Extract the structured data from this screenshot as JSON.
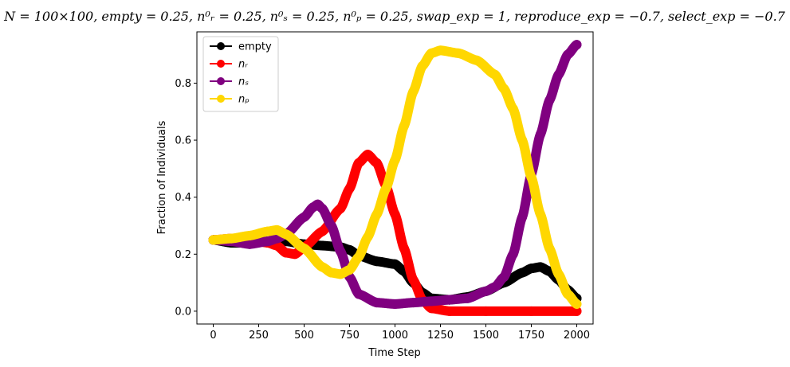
{
  "chart_data": {
    "type": "line",
    "title": "N = 100 × 100, empty = 0.25, n_r^0 = 0.25, n_s^0 = 0.25, n_p^0 = 0.25, swap_exp = 1, reproduce_exp = −0.7, select_exp = −0.7",
    "title_display": "N = 100×100, empty = 0.25, n⁰ᵣ = 0.25, n⁰ₛ = 0.25, n⁰ₚ = 0.25, swap_exp = 1, reproduce_exp = −0.7, select_exp = −0.7",
    "xlabel": "Time Step",
    "ylabel": "Fraction of Individuals",
    "xlim": [
      -90,
      2090
    ],
    "ylim": [
      -0.045,
      0.98
    ],
    "xticks": [
      0,
      250,
      500,
      750,
      1000,
      1250,
      1500,
      1750,
      2000
    ],
    "yticks": [
      0.0,
      0.2,
      0.4,
      0.6,
      0.8
    ],
    "xtick_labels": [
      "0",
      "250",
      "500",
      "750",
      "1000",
      "1250",
      "1500",
      "1750",
      "2000"
    ],
    "ytick_labels": [
      "0.0",
      "0.2",
      "0.4",
      "0.6",
      "0.8"
    ],
    "grid": false,
    "legend_position": "top-left",
    "series": [
      {
        "name": "empty",
        "color": "#000000",
        "points": [
          [
            0,
            0.25
          ],
          [
            100,
            0.24
          ],
          [
            200,
            0.24
          ],
          [
            300,
            0.245
          ],
          [
            400,
            0.245
          ],
          [
            500,
            0.235
          ],
          [
            600,
            0.23
          ],
          [
            700,
            0.225
          ],
          [
            750,
            0.215
          ],
          [
            800,
            0.195
          ],
          [
            900,
            0.175
          ],
          [
            1000,
            0.165
          ],
          [
            1050,
            0.14
          ],
          [
            1100,
            0.1
          ],
          [
            1150,
            0.065
          ],
          [
            1200,
            0.045
          ],
          [
            1300,
            0.04
          ],
          [
            1400,
            0.05
          ],
          [
            1500,
            0.07
          ],
          [
            1600,
            0.1
          ],
          [
            1700,
            0.135
          ],
          [
            1750,
            0.15
          ],
          [
            1800,
            0.155
          ],
          [
            1850,
            0.14
          ],
          [
            1900,
            0.11
          ],
          [
            1950,
            0.075
          ],
          [
            2000,
            0.045
          ]
        ]
      },
      {
        "name": "n_r",
        "label_display": "nᵣ",
        "color": "#ff0000",
        "points": [
          [
            0,
            0.25
          ],
          [
            100,
            0.255
          ],
          [
            200,
            0.25
          ],
          [
            300,
            0.24
          ],
          [
            350,
            0.23
          ],
          [
            400,
            0.205
          ],
          [
            450,
            0.2
          ],
          [
            500,
            0.225
          ],
          [
            600,
            0.28
          ],
          [
            700,
            0.36
          ],
          [
            750,
            0.43
          ],
          [
            800,
            0.52
          ],
          [
            850,
            0.55
          ],
          [
            900,
            0.52
          ],
          [
            950,
            0.44
          ],
          [
            1000,
            0.34
          ],
          [
            1050,
            0.22
          ],
          [
            1100,
            0.11
          ],
          [
            1150,
            0.04
          ],
          [
            1200,
            0.01
          ],
          [
            1300,
            0.0
          ],
          [
            1500,
            0.0
          ],
          [
            1750,
            0.0
          ],
          [
            2000,
            0.0
          ]
        ]
      },
      {
        "name": "n_s",
        "label_display": "nₛ",
        "color": "#800080",
        "points": [
          [
            0,
            0.25
          ],
          [
            100,
            0.245
          ],
          [
            200,
            0.235
          ],
          [
            300,
            0.245
          ],
          [
            350,
            0.255
          ],
          [
            400,
            0.27
          ],
          [
            500,
            0.33
          ],
          [
            550,
            0.365
          ],
          [
            575,
            0.375
          ],
          [
            600,
            0.36
          ],
          [
            650,
            0.3
          ],
          [
            700,
            0.21
          ],
          [
            750,
            0.12
          ],
          [
            800,
            0.06
          ],
          [
            900,
            0.03
          ],
          [
            1000,
            0.025
          ],
          [
            1100,
            0.03
          ],
          [
            1200,
            0.035
          ],
          [
            1300,
            0.04
          ],
          [
            1400,
            0.045
          ],
          [
            1500,
            0.07
          ],
          [
            1550,
            0.085
          ],
          [
            1600,
            0.12
          ],
          [
            1650,
            0.2
          ],
          [
            1700,
            0.33
          ],
          [
            1750,
            0.48
          ],
          [
            1800,
            0.62
          ],
          [
            1850,
            0.74
          ],
          [
            1900,
            0.83
          ],
          [
            1950,
            0.9
          ],
          [
            2000,
            0.935
          ]
        ]
      },
      {
        "name": "n_p",
        "label_display": "nₚ",
        "color": "#ffd700",
        "points": [
          [
            0,
            0.25
          ],
          [
            100,
            0.255
          ],
          [
            200,
            0.265
          ],
          [
            300,
            0.28
          ],
          [
            350,
            0.285
          ],
          [
            400,
            0.27
          ],
          [
            500,
            0.22
          ],
          [
            600,
            0.155
          ],
          [
            650,
            0.135
          ],
          [
            700,
            0.13
          ],
          [
            750,
            0.145
          ],
          [
            800,
            0.19
          ],
          [
            850,
            0.26
          ],
          [
            900,
            0.34
          ],
          [
            950,
            0.43
          ],
          [
            1000,
            0.53
          ],
          [
            1050,
            0.65
          ],
          [
            1100,
            0.77
          ],
          [
            1150,
            0.86
          ],
          [
            1200,
            0.905
          ],
          [
            1250,
            0.915
          ],
          [
            1350,
            0.905
          ],
          [
            1450,
            0.88
          ],
          [
            1550,
            0.83
          ],
          [
            1600,
            0.78
          ],
          [
            1650,
            0.71
          ],
          [
            1700,
            0.6
          ],
          [
            1750,
            0.47
          ],
          [
            1800,
            0.34
          ],
          [
            1850,
            0.22
          ],
          [
            1900,
            0.13
          ],
          [
            1950,
            0.06
          ],
          [
            2000,
            0.025
          ]
        ]
      }
    ]
  }
}
